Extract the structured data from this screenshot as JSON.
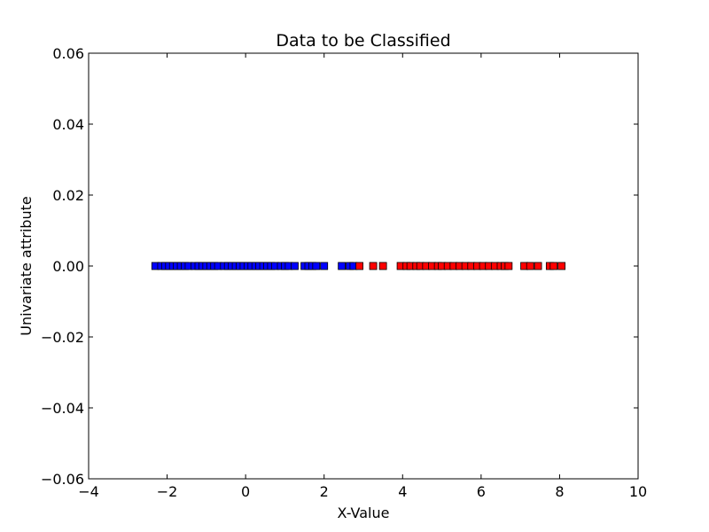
{
  "chart_data": {
    "type": "scatter",
    "title": "Data to be Classified",
    "xlabel": "X-Value",
    "ylabel": "Univariate attribute",
    "xlim": [
      -4,
      10
    ],
    "ylim": [
      -0.06,
      0.06
    ],
    "xticks": [
      -4,
      -2,
      0,
      2,
      4,
      6,
      8,
      10
    ],
    "xtick_labels": [
      "−4",
      "−2",
      "0",
      "2",
      "4",
      "6",
      "8",
      "10"
    ],
    "yticks": [
      -0.06,
      -0.04,
      -0.02,
      0.0,
      0.02,
      0.04,
      0.06
    ],
    "ytick_labels": [
      "−0.06",
      "−0.04",
      "−0.02",
      "0.00",
      "0.02",
      "0.04",
      "0.06"
    ],
    "grid": false,
    "marker": "square",
    "series": [
      {
        "color": "#0000ff",
        "x": [
          -2.3,
          -2.15,
          -2.05,
          -1.95,
          -1.85,
          -1.75,
          -1.65,
          -1.55,
          -1.45,
          -1.3,
          -1.2,
          -1.1,
          -1.0,
          -0.9,
          -0.8,
          -0.7,
          -0.55,
          -0.45,
          -0.35,
          -0.25,
          -0.15,
          -0.05,
          0.05,
          0.15,
          0.25,
          0.35,
          0.45,
          0.55,
          0.65,
          0.75,
          0.9,
          1.0,
          1.1,
          1.25,
          1.5,
          1.6,
          1.7,
          1.8,
          2.0,
          2.45,
          2.65,
          2.75
        ],
        "y": [
          0,
          0,
          0,
          0,
          0,
          0,
          0,
          0,
          0,
          0,
          0,
          0,
          0,
          0,
          0,
          0,
          0,
          0,
          0,
          0,
          0,
          0,
          0,
          0,
          0,
          0,
          0,
          0,
          0,
          0,
          0,
          0,
          0,
          0,
          0,
          0,
          0,
          0,
          0,
          0,
          0,
          0
        ]
      },
      {
        "color": "#ff0000",
        "x": [
          2.9,
          3.25,
          3.5,
          3.95,
          4.1,
          4.2,
          4.35,
          4.45,
          4.6,
          4.75,
          4.9,
          5.0,
          5.15,
          5.3,
          5.45,
          5.6,
          5.75,
          5.9,
          6.05,
          6.2,
          6.35,
          6.5,
          6.6,
          6.7,
          7.1,
          7.25,
          7.45,
          7.75,
          7.85,
          8.05
        ],
        "y": [
          0,
          0,
          0,
          0,
          0,
          0,
          0,
          0,
          0,
          0,
          0,
          0,
          0,
          0,
          0,
          0,
          0,
          0,
          0,
          0,
          0,
          0,
          0,
          0,
          0,
          0,
          0,
          0,
          0,
          0
        ]
      }
    ]
  }
}
